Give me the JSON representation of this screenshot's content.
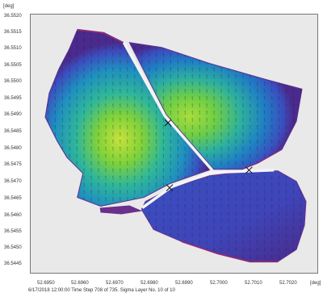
{
  "y_unit": "[deg]",
  "x_unit": "[deg]",
  "y_ticks": [
    "36.5520",
    "36.5515",
    "36.5510",
    "36.5505",
    "36.5500",
    "36.5495",
    "36.5490",
    "36.5485",
    "36.5480",
    "36.5475",
    "36.5470",
    "36.5465",
    "36.5460",
    "36.5455",
    "36.5450",
    "36.5445"
  ],
  "x_ticks": [
    "52.6950",
    "52.6960",
    "52.6970",
    "52.6980",
    "52.6990",
    "52.7000",
    "52.7010",
    "52.7020"
  ],
  "status_text": "6/17/2018 12:00:00  Time Step 708 of 735.  Sigma Layer No. 10 of 10",
  "colors": {
    "background": "#e9e9e9",
    "deep_purple": "#4a2a8c",
    "blue": "#3a4fc0",
    "teal": "#1f8fc0",
    "cyan_green": "#2fb79a",
    "green": "#7fd23a",
    "yellow_green": "#c6e23a",
    "magenta": "#8a2a7a"
  }
}
